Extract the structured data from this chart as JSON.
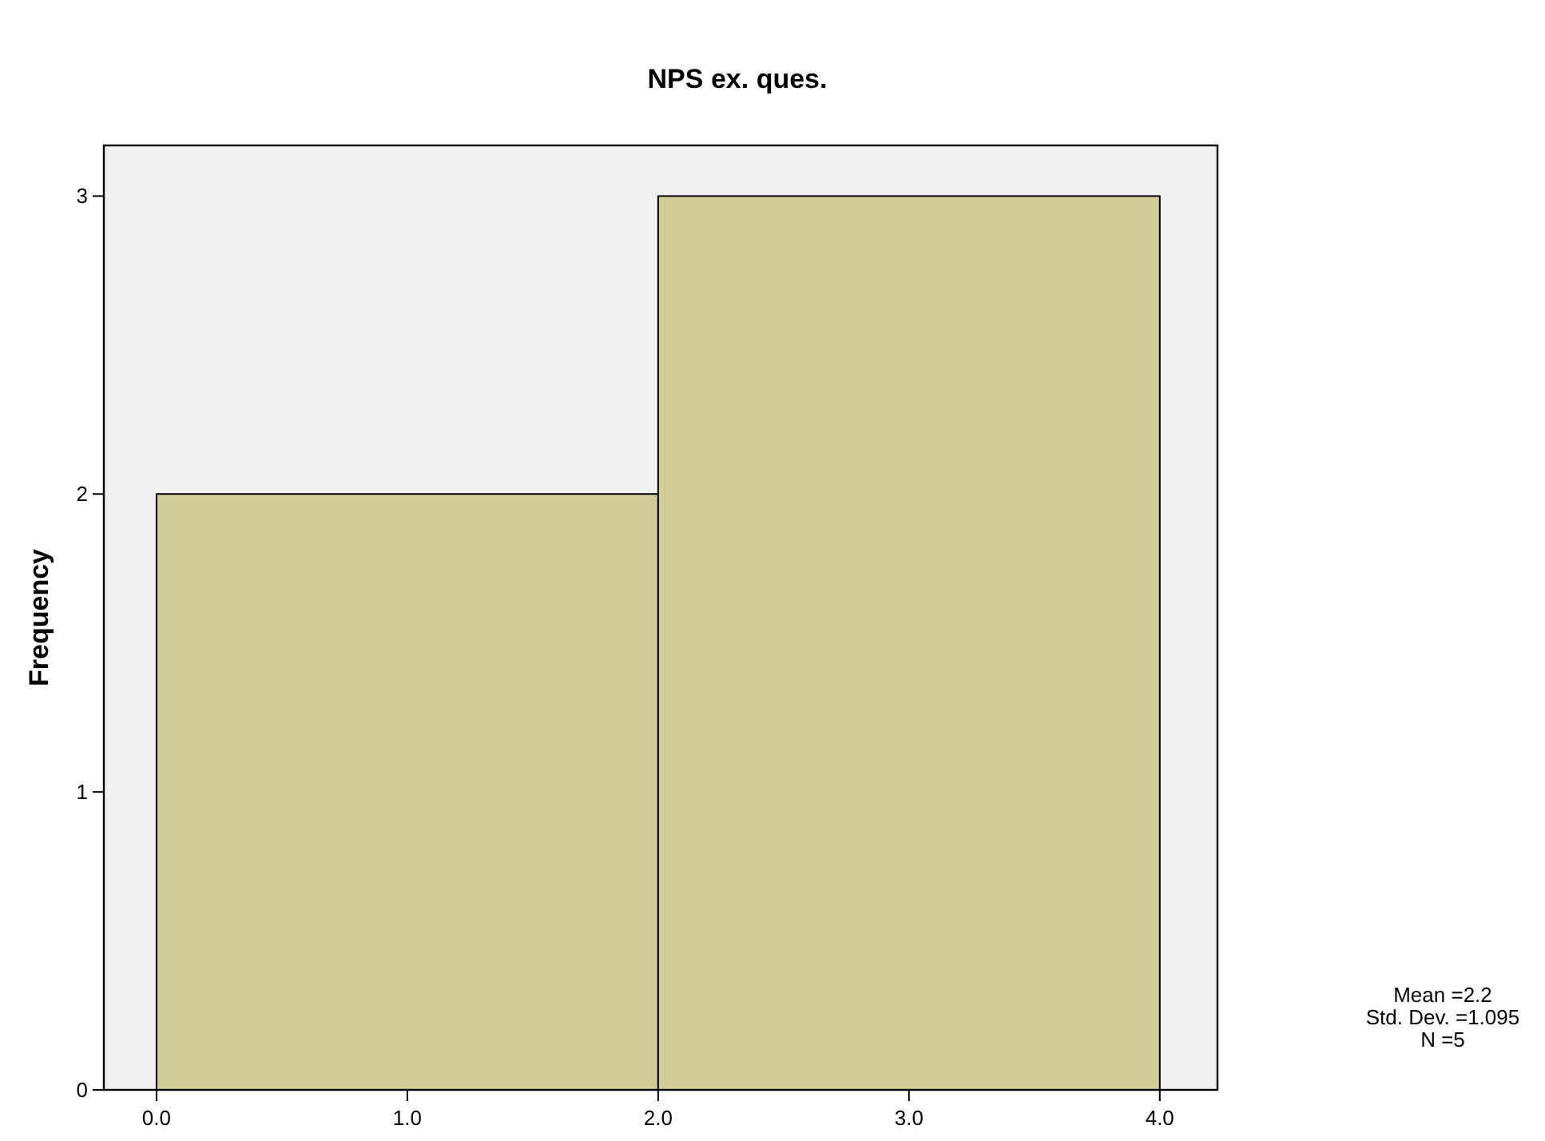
{
  "chart_data": {
    "type": "histogram",
    "title": "NPS ex. ques.",
    "ylabel": "Frequency",
    "bins": [
      0,
      2,
      4
    ],
    "values": [
      2,
      3
    ],
    "color": "#d3ce99",
    "xlim": [
      -0.21,
      4.23
    ],
    "ylim": [
      0,
      3.17
    ],
    "xticks": [
      {
        "value": 0,
        "label": "0.0"
      },
      {
        "value": 1,
        "label": "1.0"
      },
      {
        "value": 2,
        "label": "2.0"
      },
      {
        "value": 3,
        "label": "3.0"
      },
      {
        "value": 4,
        "label": "4.0"
      }
    ],
    "yticks": [
      0,
      1,
      2,
      3
    ],
    "grid": false,
    "annotations": [
      "Mean =2.2",
      "Std. Dev. =1.095",
      "N =5"
    ]
  }
}
